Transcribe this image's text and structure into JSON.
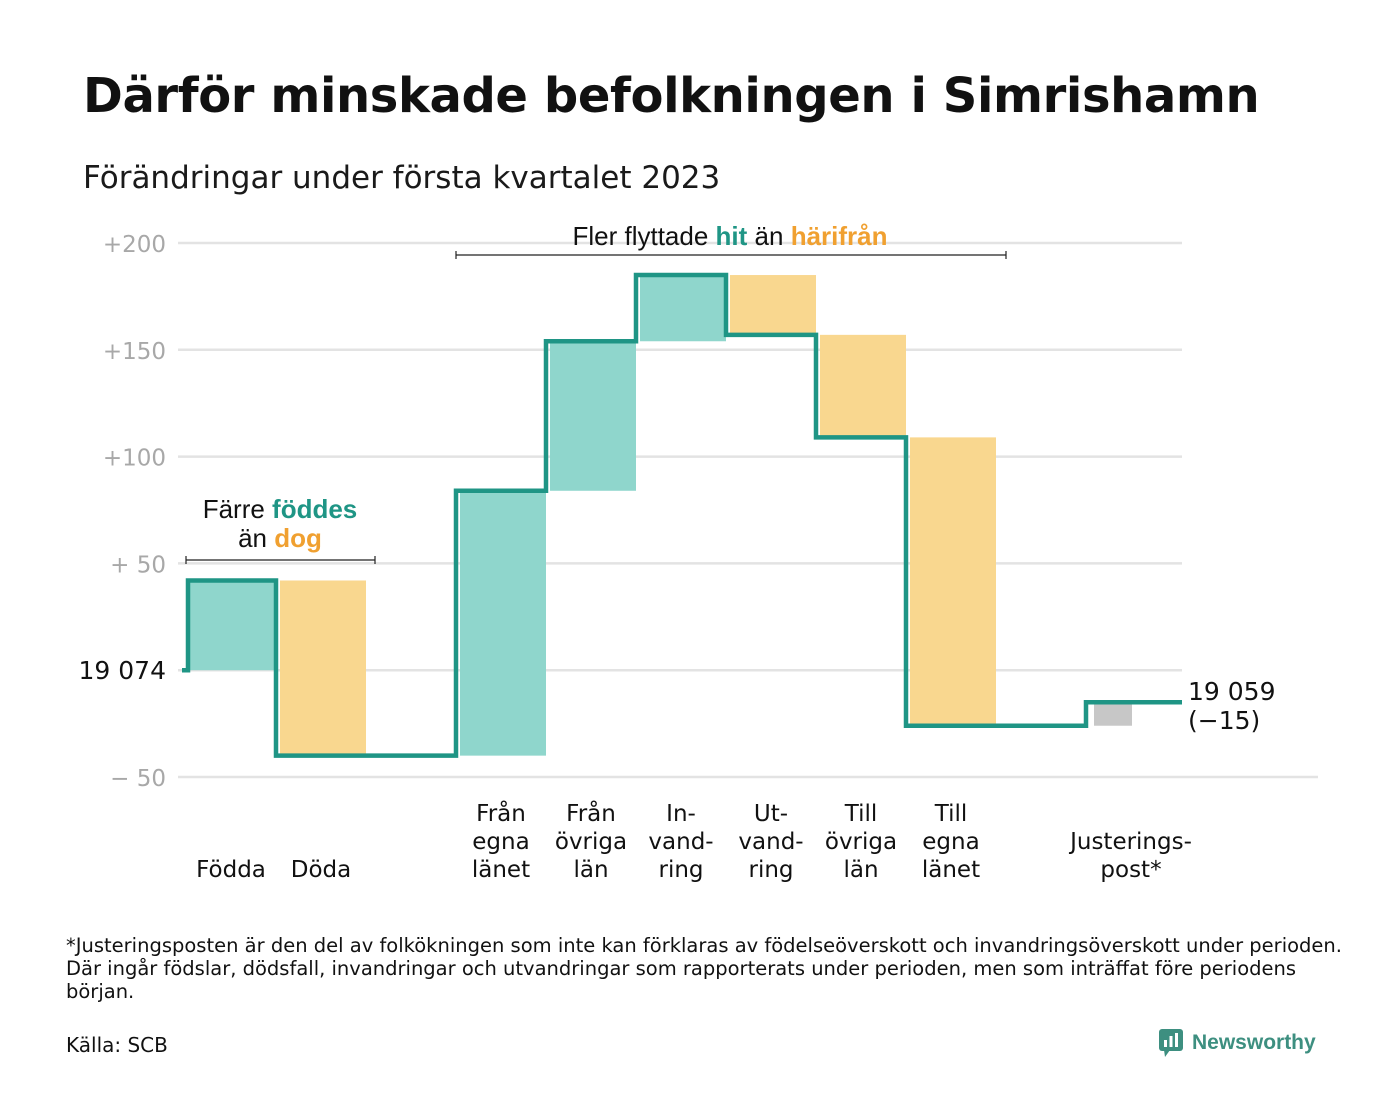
{
  "header": {
    "title": "Därför minskade befolkningen i Simrishamn",
    "subtitle": "Förändringar under första kvartalet 2023"
  },
  "footnote": "*Justeringsposten är den del av folkökningen som inte kan förklaras av födelseöverskott och invandringsöverskott under perioden. Där ingår födslar, dödsfall, invandringar och utvandringar som rapporterats under perioden, men som inträffat före periodens början.",
  "source": "Källa: SCB",
  "brand": {
    "name": "Newsworthy",
    "icon": "newsworthy-logo-icon"
  },
  "colors": {
    "inflow_fill": "#8fd6cc",
    "outflow_fill": "#f9d78f",
    "adjustment_fill": "#c7c7c7",
    "step_line": "#1f9585",
    "teal_text": "#1f9585",
    "orange_text": "#f0a030",
    "grid": "#e3e3e3",
    "tick_text": "#a8a8a8"
  },
  "annotations": {
    "births": {
      "line1_pre": "Färre ",
      "line1_hl": "föddes",
      "line2_pre": "än ",
      "line2_hl": "dog"
    },
    "moves": {
      "pre": "Fler flyttade ",
      "hl1": "hit",
      "mid": " än ",
      "hl2": "härifrån"
    }
  },
  "chart_data": {
    "type": "waterfall",
    "title": "Därför minskade befolkningen i Simrishamn",
    "subtitle": "Förändringar under första kvartalet 2023",
    "baseline_value": 19074,
    "start_label": "19 074",
    "end_label_line1": "19 059",
    "end_label_line2": "(−15)",
    "end_value": 19059,
    "net_change": -15,
    "ylim": [
      -50,
      200
    ],
    "ylim_display": [
      -55,
      205
    ],
    "yticks": [
      {
        "value": -50,
        "label": "− 50"
      },
      {
        "value": 0,
        "label": ""
      },
      {
        "value": 50,
        "label": "+ 50"
      },
      {
        "value": 100,
        "label": "+100"
      },
      {
        "value": 150,
        "label": "+150"
      },
      {
        "value": 200,
        "label": "+200"
      }
    ],
    "grid": true,
    "categories": [
      {
        "label": [
          "Födda"
        ],
        "value": 42,
        "kind": "inflow"
      },
      {
        "label": [
          "Döda"
        ],
        "value": -82,
        "kind": "outflow"
      },
      {
        "label": [],
        "value": 0,
        "kind": "gap"
      },
      {
        "label": [
          "Från",
          "egna",
          "länet"
        ],
        "value": 124,
        "kind": "inflow"
      },
      {
        "label": [
          "Från",
          "övriga",
          "län"
        ],
        "value": 70,
        "kind": "inflow"
      },
      {
        "label": [
          "In-",
          "vand-",
          "ring"
        ],
        "value": 31,
        "kind": "inflow"
      },
      {
        "label": [
          "Ut-",
          "vand-",
          "ring"
        ],
        "value": -28,
        "kind": "outflow"
      },
      {
        "label": [
          "Till",
          "övriga",
          "län"
        ],
        "value": -48,
        "kind": "outflow"
      },
      {
        "label": [
          "Till",
          "egna",
          "länet"
        ],
        "value": -135,
        "kind": "outflow"
      },
      {
        "label": [],
        "value": 0,
        "kind": "gap"
      },
      {
        "label": [
          "Justerings-",
          "post*"
        ],
        "value": 11,
        "kind": "adjustment"
      }
    ]
  }
}
